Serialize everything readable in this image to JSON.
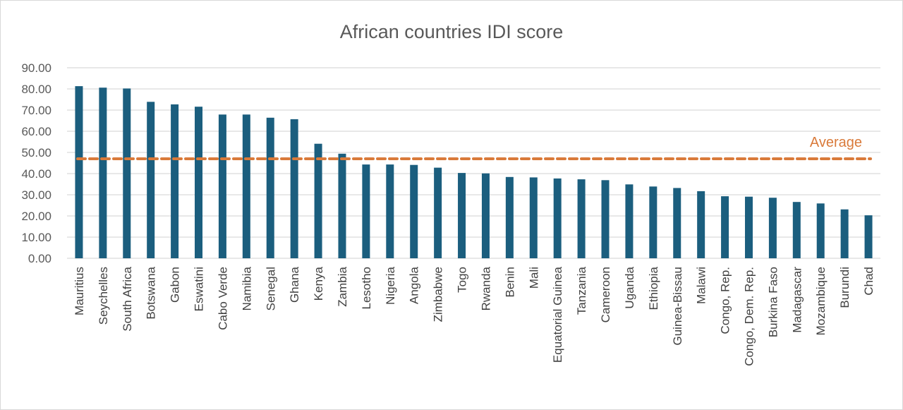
{
  "chart_data": {
    "type": "bar",
    "title": "African countries IDI score",
    "xlabel": "",
    "ylabel": "",
    "ylim": [
      0,
      90
    ],
    "yticks": [
      "0.00",
      "10.00",
      "20.00",
      "30.00",
      "40.00",
      "50.00",
      "60.00",
      "70.00",
      "80.00",
      "90.00"
    ],
    "grid": true,
    "categories": [
      "Mauritius",
      "Seychelles",
      "South Africa",
      "Botswana",
      "Gabon",
      "Eswatini",
      "Cabo Verde",
      "Namibia",
      "Senegal",
      "Ghana",
      "Kenya",
      "Zambia",
      "Lesotho",
      "Nigeria",
      "Angola",
      "Zimbabwe",
      "Togo",
      "Rwanda",
      "Benin",
      "Mali",
      "Equatorial Guinea",
      "Tanzania",
      "Cameroon",
      "Uganda",
      "Ethiopia",
      "Guinea-Bissau",
      "Malawi",
      "Congo, Rep.",
      "Congo, Dem. Rep.",
      "Burkina Faso",
      "Madagascar",
      "Mozambique",
      "Burundi",
      "Chad"
    ],
    "values": [
      81.3,
      80.6,
      80.2,
      73.9,
      72.7,
      71.6,
      67.9,
      67.9,
      66.4,
      65.7,
      54.1,
      49.4,
      44.3,
      44.3,
      44.1,
      42.8,
      40.3,
      40.1,
      38.4,
      38.2,
      37.7,
      37.3,
      36.9,
      34.9,
      33.9,
      33.2,
      31.7,
      29.3,
      29.1,
      28.6,
      26.6,
      25.9,
      23.1,
      20.3
    ],
    "reference_line": {
      "label": "Average",
      "value": 47.0,
      "style": "dashed"
    },
    "colors": {
      "bar": "#1b5e7e",
      "average": "#d97a3a",
      "grid": "#d9d9d9"
    }
  }
}
